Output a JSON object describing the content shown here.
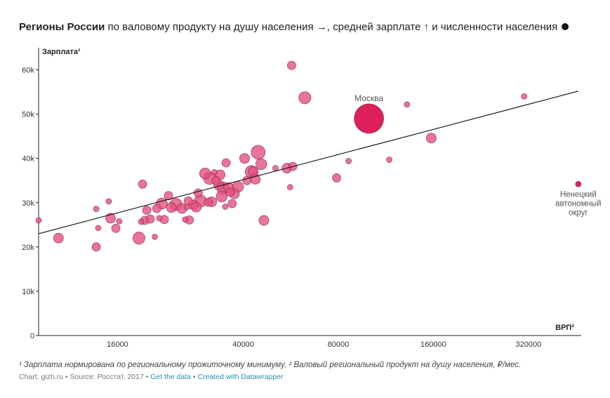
{
  "header": {
    "title_bold": "Регионы России",
    "title_rest": " по валовому продукту на душу населения →, средней зарплате ↑ и численности населения"
  },
  "footer": {
    "footnote": "¹ Зарплата нормирована по региональному прожиточному минимуму. ² Валовый региональный продукт на душу населения, ₽/мес.",
    "chart_prefix": "Chart:",
    "source": "gizh.ru • Source: Росстат, 2017 •",
    "get_data": "Get the data",
    "sep": "•",
    "created": "Created with Datawrapper"
  },
  "colors": {
    "bubble": "#e5507e",
    "bubble_highlight": "#dc1450",
    "bubble_stroke": "#7a2040",
    "line": "#111111",
    "axis": "#222222"
  },
  "chart_data": {
    "type": "scatter",
    "ylabel": "Зарплата¹",
    "xlabel": "ВРП²",
    "x_scale": "log",
    "xlim": [
      9000,
      470000
    ],
    "ylim": [
      0,
      65000
    ],
    "x_ticks": [
      16000,
      40000,
      80000,
      160000,
      320000
    ],
    "x_tick_labels": [
      "16000",
      "40000",
      "80000",
      "160000",
      "320000"
    ],
    "y_ticks": [
      0,
      10000,
      20000,
      30000,
      40000,
      50000,
      60000
    ],
    "y_tick_labels": [
      "0",
      "10k",
      "20k",
      "30k",
      "40k",
      "50k",
      "60k"
    ],
    "trend_line": [
      [
        9000,
        23000
      ],
      [
        460000,
        55200
      ]
    ],
    "points": [
      {
        "x": 9000,
        "y": 26000,
        "size": 1
      },
      {
        "x": 10400,
        "y": 22000,
        "size": 3
      },
      {
        "x": 13700,
        "y": 20000,
        "size": 2
      },
      {
        "x": 13700,
        "y": 28600,
        "size": 1
      },
      {
        "x": 13900,
        "y": 24300,
        "size": 1
      },
      {
        "x": 15000,
        "y": 30300,
        "size": 1
      },
      {
        "x": 15200,
        "y": 26500,
        "size": 3
      },
      {
        "x": 15800,
        "y": 24200,
        "size": 2
      },
      {
        "x": 16200,
        "y": 25800,
        "size": 1
      },
      {
        "x": 18700,
        "y": 22000,
        "size": 5
      },
      {
        "x": 19200,
        "y": 34200,
        "size": 2
      },
      {
        "x": 19000,
        "y": 25700,
        "size": 1
      },
      {
        "x": 19500,
        "y": 26000,
        "size": 2
      },
      {
        "x": 19800,
        "y": 28300,
        "size": 2
      },
      {
        "x": 20300,
        "y": 26300,
        "size": 2
      },
      {
        "x": 21000,
        "y": 22300,
        "size": 1
      },
      {
        "x": 21300,
        "y": 28700,
        "size": 2
      },
      {
        "x": 21700,
        "y": 26500,
        "size": 1
      },
      {
        "x": 22100,
        "y": 29800,
        "size": 4
      },
      {
        "x": 22500,
        "y": 26200,
        "size": 2
      },
      {
        "x": 23200,
        "y": 31600,
        "size": 2
      },
      {
        "x": 23700,
        "y": 28900,
        "size": 3
      },
      {
        "x": 24500,
        "y": 29600,
        "size": 5
      },
      {
        "x": 25600,
        "y": 28700,
        "size": 3
      },
      {
        "x": 26500,
        "y": 29000,
        "size": 1
      },
      {
        "x": 26200,
        "y": 26200,
        "size": 1
      },
      {
        "x": 27000,
        "y": 26100,
        "size": 2
      },
      {
        "x": 26800,
        "y": 30400,
        "size": 2
      },
      {
        "x": 27800,
        "y": 29500,
        "size": 3
      },
      {
        "x": 28400,
        "y": 29000,
        "size": 3
      },
      {
        "x": 28800,
        "y": 32200,
        "size": 2
      },
      {
        "x": 29300,
        "y": 30400,
        "size": 5
      },
      {
        "x": 30300,
        "y": 36600,
        "size": 4
      },
      {
        "x": 31000,
        "y": 30100,
        "size": 2
      },
      {
        "x": 31300,
        "y": 35500,
        "size": 5
      },
      {
        "x": 31800,
        "y": 30200,
        "size": 3
      },
      {
        "x": 32400,
        "y": 36900,
        "size": 1
      },
      {
        "x": 32800,
        "y": 35000,
        "size": 2
      },
      {
        "x": 33400,
        "y": 34000,
        "size": 3
      },
      {
        "x": 33800,
        "y": 36300,
        "size": 3
      },
      {
        "x": 34200,
        "y": 31400,
        "size": 4
      },
      {
        "x": 34500,
        "y": 33300,
        "size": 5
      },
      {
        "x": 35100,
        "y": 29100,
        "size": 1
      },
      {
        "x": 35300,
        "y": 39000,
        "size": 2
      },
      {
        "x": 36000,
        "y": 33400,
        "size": 3
      },
      {
        "x": 36400,
        "y": 32400,
        "size": 2
      },
      {
        "x": 36900,
        "y": 29800,
        "size": 2
      },
      {
        "x": 37500,
        "y": 32000,
        "size": 3
      },
      {
        "x": 38500,
        "y": 33600,
        "size": 4
      },
      {
        "x": 40400,
        "y": 40000,
        "size": 3
      },
      {
        "x": 41100,
        "y": 35000,
        "size": 2
      },
      {
        "x": 42400,
        "y": 37000,
        "size": 5
      },
      {
        "x": 43000,
        "y": 37000,
        "size": 3
      },
      {
        "x": 43700,
        "y": 35300,
        "size": 3
      },
      {
        "x": 44600,
        "y": 41400,
        "size": 7
      },
      {
        "x": 45600,
        "y": 38700,
        "size": 4
      },
      {
        "x": 46500,
        "y": 26000,
        "size": 3
      },
      {
        "x": 50600,
        "y": 37800,
        "size": 1
      },
      {
        "x": 55000,
        "y": 37800,
        "size": 3
      },
      {
        "x": 56300,
        "y": 33500,
        "size": 1
      },
      {
        "x": 57400,
        "y": 38200,
        "size": 2
      },
      {
        "x": 56900,
        "y": 61000,
        "size": 2
      },
      {
        "x": 62700,
        "y": 53700,
        "size": 5
      },
      {
        "x": 79000,
        "y": 35600,
        "size": 2
      },
      {
        "x": 86200,
        "y": 39400,
        "size": 1
      },
      {
        "x": 100000,
        "y": 49000,
        "size": 10,
        "label": "Москва",
        "highlight": true
      },
      {
        "x": 116000,
        "y": 39700,
        "size": 1
      },
      {
        "x": 132000,
        "y": 52200,
        "size": 1
      },
      {
        "x": 157500,
        "y": 44600,
        "size": 3
      },
      {
        "x": 310000,
        "y": 54000,
        "size": 1
      },
      {
        "x": 460000,
        "y": 34200,
        "size": 1,
        "label": "Ненецкий автономный округ",
        "highlight": true
      }
    ]
  }
}
